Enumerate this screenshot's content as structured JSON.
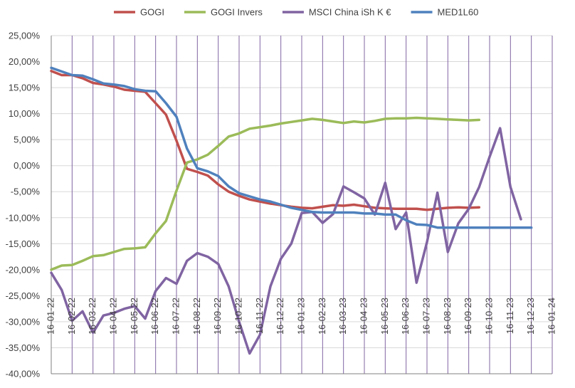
{
  "chart_data": {
    "type": "line",
    "title": "",
    "xlabel": "",
    "ylabel": "",
    "ylim": [
      -40,
      25
    ],
    "y_tick_step": 5,
    "y_tick_labels": [
      "25,00%",
      "20,00%",
      "15,00%",
      "10,00%",
      "5,00%",
      "0,00%",
      "-5,00%",
      "-10,00%",
      "-15,00%",
      "-20,00%",
      "-25,00%",
      "-30,00%",
      "-35,00%",
      "-40,00%"
    ],
    "x_tick_labels": [
      "16-01-22",
      "16-02-22",
      "16-03-22",
      "16-04-22",
      "16-05-22",
      "16-06-22",
      "16-07-22",
      "16-08-22",
      "16-09-22",
      "16-10-22",
      "16-11-22",
      "16-12-22",
      "16-01-23",
      "16-02-23",
      "16-03-23",
      "16-04-23",
      "16-05-23",
      "16-06-23",
      "16-07-23",
      "16-08-23",
      "16-09-23",
      "16-10-23",
      "16-11-23",
      "16-12-23",
      "16-01-24"
    ],
    "grid": true,
    "legend_position": "top",
    "series": [
      {
        "name": "GOGI",
        "color": "#c0504d",
        "points": [
          [
            0,
            18.2
          ],
          [
            0.5,
            17.4
          ],
          [
            1,
            17.4
          ],
          [
            1.5,
            16.8
          ],
          [
            2,
            15.9
          ],
          [
            2.5,
            15.6
          ],
          [
            3,
            15.2
          ],
          [
            3.5,
            14.6
          ],
          [
            4,
            14.4
          ],
          [
            4.5,
            14.2
          ],
          [
            5,
            12.0
          ],
          [
            5.5,
            9.8
          ],
          [
            6,
            4.8
          ],
          [
            6.5,
            -0.6
          ],
          [
            7,
            -1.2
          ],
          [
            7.5,
            -1.9
          ],
          [
            8,
            -3.6
          ],
          [
            8.5,
            -5.0
          ],
          [
            9,
            -5.8
          ],
          [
            9.5,
            -6.5
          ],
          [
            10,
            -6.9
          ],
          [
            10.5,
            -7.3
          ],
          [
            11,
            -7.6
          ],
          [
            11.5,
            -7.9
          ],
          [
            12,
            -8.1
          ],
          [
            12.5,
            -8.2
          ],
          [
            13,
            -7.9
          ],
          [
            13.5,
            -7.6
          ],
          [
            14,
            -7.7
          ],
          [
            14.5,
            -7.5
          ],
          [
            15,
            -7.8
          ],
          [
            15.5,
            -8.1
          ],
          [
            16,
            -8.2
          ],
          [
            16.5,
            -8.3
          ],
          [
            17,
            -8.3
          ],
          [
            17.5,
            -8.3
          ],
          [
            18,
            -8.5
          ],
          [
            18.5,
            -8.3
          ],
          [
            19,
            -8.1
          ],
          [
            19.5,
            -8.0
          ],
          [
            20,
            -8.1
          ],
          [
            20.5,
            -8.0
          ]
        ]
      },
      {
        "name": "GOGI Invers",
        "color": "#9bbb59",
        "points": [
          [
            0,
            -20.0
          ],
          [
            0.5,
            -19.2
          ],
          [
            1,
            -19.1
          ],
          [
            1.5,
            -18.3
          ],
          [
            2,
            -17.4
          ],
          [
            2.5,
            -17.2
          ],
          [
            3,
            -16.6
          ],
          [
            3.5,
            -16.0
          ],
          [
            4,
            -15.9
          ],
          [
            4.5,
            -15.7
          ],
          [
            5,
            -13.0
          ],
          [
            5.5,
            -10.6
          ],
          [
            6,
            -4.8
          ],
          [
            6.5,
            0.6
          ],
          [
            7,
            1.2
          ],
          [
            7.5,
            2.1
          ],
          [
            8,
            3.8
          ],
          [
            8.5,
            5.6
          ],
          [
            9,
            6.2
          ],
          [
            9.5,
            7.1
          ],
          [
            10,
            7.4
          ],
          [
            10.5,
            7.7
          ],
          [
            11,
            8.1
          ],
          [
            11.5,
            8.4
          ],
          [
            12,
            8.7
          ],
          [
            12.5,
            9.0
          ],
          [
            13,
            8.8
          ],
          [
            13.5,
            8.5
          ],
          [
            14,
            8.2
          ],
          [
            14.5,
            8.5
          ],
          [
            15,
            8.3
          ],
          [
            15.5,
            8.6
          ],
          [
            16,
            9.0
          ],
          [
            16.5,
            9.1
          ],
          [
            17,
            9.1
          ],
          [
            17.5,
            9.2
          ],
          [
            18,
            9.1
          ],
          [
            18.5,
            9.0
          ],
          [
            19,
            8.9
          ],
          [
            19.5,
            8.8
          ],
          [
            20,
            8.7
          ],
          [
            20.5,
            8.8
          ]
        ]
      },
      {
        "name": "MSCI China iSh K €",
        "color": "#8064a2",
        "points": [
          [
            0,
            -20.6
          ],
          [
            0.5,
            -23.9
          ],
          [
            1,
            -29.8
          ],
          [
            1.5,
            -28.0
          ],
          [
            2,
            -32.1
          ],
          [
            2.5,
            -28.8
          ],
          [
            3,
            -28.3
          ],
          [
            3.5,
            -27.5
          ],
          [
            4,
            -27.0
          ],
          [
            4.5,
            -29.4
          ],
          [
            5,
            -24.1
          ],
          [
            5.5,
            -21.6
          ],
          [
            6,
            -22.7
          ],
          [
            6.5,
            -18.3
          ],
          [
            7,
            -16.8
          ],
          [
            7.5,
            -17.5
          ],
          [
            8,
            -18.9
          ],
          [
            8.5,
            -23.2
          ],
          [
            9,
            -30.0
          ],
          [
            9.5,
            -36.1
          ],
          [
            10,
            -32.5
          ],
          [
            10.5,
            -23.2
          ],
          [
            11,
            -17.9
          ],
          [
            11.5,
            -15.0
          ],
          [
            12,
            -9.1
          ],
          [
            12.5,
            -8.9
          ],
          [
            13,
            -11.0
          ],
          [
            13.5,
            -9.3
          ],
          [
            14,
            -4.0
          ],
          [
            14.5,
            -5.1
          ],
          [
            15,
            -6.3
          ],
          [
            15.5,
            -9.4
          ],
          [
            16,
            -3.3
          ],
          [
            16.5,
            -12.2
          ],
          [
            17,
            -9.0
          ],
          [
            17.5,
            -22.5
          ],
          [
            18,
            -14.7
          ],
          [
            18.5,
            -5.2
          ],
          [
            19,
            -16.6
          ],
          [
            19.5,
            -11.1
          ],
          [
            20,
            -8.3
          ],
          [
            20.5,
            -4.1
          ],
          [
            21,
            1.7
          ],
          [
            21.5,
            7.2
          ],
          [
            22,
            -4.1
          ],
          [
            22.5,
            -10.3
          ]
        ]
      },
      {
        "name": "MED1L60",
        "color": "#4f81bd",
        "points": [
          [
            0,
            18.8
          ],
          [
            0.5,
            18.1
          ],
          [
            1,
            17.4
          ],
          [
            1.5,
            17.3
          ],
          [
            2,
            16.6
          ],
          [
            2.5,
            15.8
          ],
          [
            3,
            15.6
          ],
          [
            3.5,
            15.3
          ],
          [
            4,
            14.7
          ],
          [
            4.5,
            14.4
          ],
          [
            5,
            14.3
          ],
          [
            5.5,
            12.0
          ],
          [
            6,
            9.4
          ],
          [
            6.5,
            3.3
          ],
          [
            7,
            -0.5
          ],
          [
            7.5,
            -1.1
          ],
          [
            8,
            -2.0
          ],
          [
            8.5,
            -4.0
          ],
          [
            9,
            -5.3
          ],
          [
            9.5,
            -5.9
          ],
          [
            10,
            -6.5
          ],
          [
            10.5,
            -6.9
          ],
          [
            11,
            -7.5
          ],
          [
            11.5,
            -8.1
          ],
          [
            12,
            -8.5
          ],
          [
            12.5,
            -8.9
          ],
          [
            13,
            -9.0
          ],
          [
            13.5,
            -9.0
          ],
          [
            14,
            -9.0
          ],
          [
            14.5,
            -9.0
          ],
          [
            15,
            -9.2
          ],
          [
            15.5,
            -9.2
          ],
          [
            16,
            -9.4
          ],
          [
            16.5,
            -9.4
          ],
          [
            17,
            -10.5
          ],
          [
            17.5,
            -11.3
          ],
          [
            18,
            -11.4
          ],
          [
            18.5,
            -11.9
          ],
          [
            19,
            -11.9
          ],
          [
            19.5,
            -11.9
          ],
          [
            20,
            -11.9
          ],
          [
            20.5,
            -11.9
          ],
          [
            21,
            -11.9
          ],
          [
            21.5,
            -11.9
          ],
          [
            22,
            -11.9
          ],
          [
            22.5,
            -11.9
          ],
          [
            23,
            -11.9
          ]
        ]
      }
    ]
  }
}
